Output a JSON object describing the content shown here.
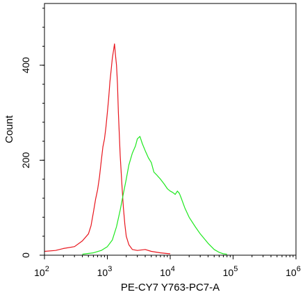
{
  "chart_data": {
    "type": "line",
    "title": "",
    "xlabel": "PE-CY7 Y763-PC7-A",
    "ylabel": "Count",
    "x_scale": "log",
    "x_range": [
      100,
      1000000
    ],
    "y_range": [
      0,
      530
    ],
    "grid": false,
    "x_ticks": [
      {
        "value": 100,
        "base": "10",
        "exp": "2"
      },
      {
        "value": 1000,
        "base": "10",
        "exp": "3"
      },
      {
        "value": 10000,
        "base": "10",
        "exp": "4"
      },
      {
        "value": 100000,
        "base": "10",
        "exp": "5"
      },
      {
        "value": 1000000,
        "base": "10",
        "exp": "6"
      }
    ],
    "y_ticks": [
      {
        "value": 0,
        "label": "0"
      },
      {
        "value": 200,
        "label": "200"
      },
      {
        "value": 400,
        "label": "400"
      }
    ],
    "series": [
      {
        "color": "#e8141c",
        "x": [
          100,
          150,
          200,
          300,
          400,
          500,
          550,
          600,
          650,
          700,
          750,
          800,
          850,
          900,
          950,
          1000,
          1050,
          1100,
          1150,
          1200,
          1250,
          1300,
          1350,
          1400,
          1450,
          1500,
          1550,
          1600,
          1700,
          1800,
          1900,
          2000,
          2200,
          2500,
          3000,
          4000,
          5000,
          7000,
          10000
        ],
        "y": [
          8,
          10,
          14,
          18,
          30,
          45,
          62,
          90,
          118,
          138,
          165,
          198,
          228,
          245,
          270,
          300,
          330,
          365,
          390,
          415,
          430,
          445,
          420,
          400,
          360,
          300,
          255,
          210,
          150,
          100,
          65,
          40,
          22,
          12,
          10,
          12,
          8,
          5,
          3
        ]
      },
      {
        "color": "#1ee81e",
        "x": [
          400,
          600,
          800,
          1000,
          1200,
          1400,
          1600,
          1800,
          2000,
          2200,
          2500,
          2800,
          3000,
          3300,
          3600,
          4000,
          4500,
          5000,
          5500,
          6000,
          7000,
          8000,
          9000,
          10000,
          11000,
          12000,
          13000,
          14000,
          15000,
          17000,
          20000,
          25000,
          30000,
          40000,
          50000,
          60000,
          70000,
          80000
        ],
        "y": [
          2,
          5,
          10,
          18,
          32,
          60,
          95,
          130,
          160,
          190,
          215,
          230,
          245,
          250,
          235,
          220,
          205,
          195,
          175,
          170,
          160,
          150,
          140,
          135,
          132,
          128,
          135,
          130,
          120,
          100,
          80,
          60,
          45,
          25,
          12,
          6,
          3,
          2
        ]
      }
    ]
  }
}
